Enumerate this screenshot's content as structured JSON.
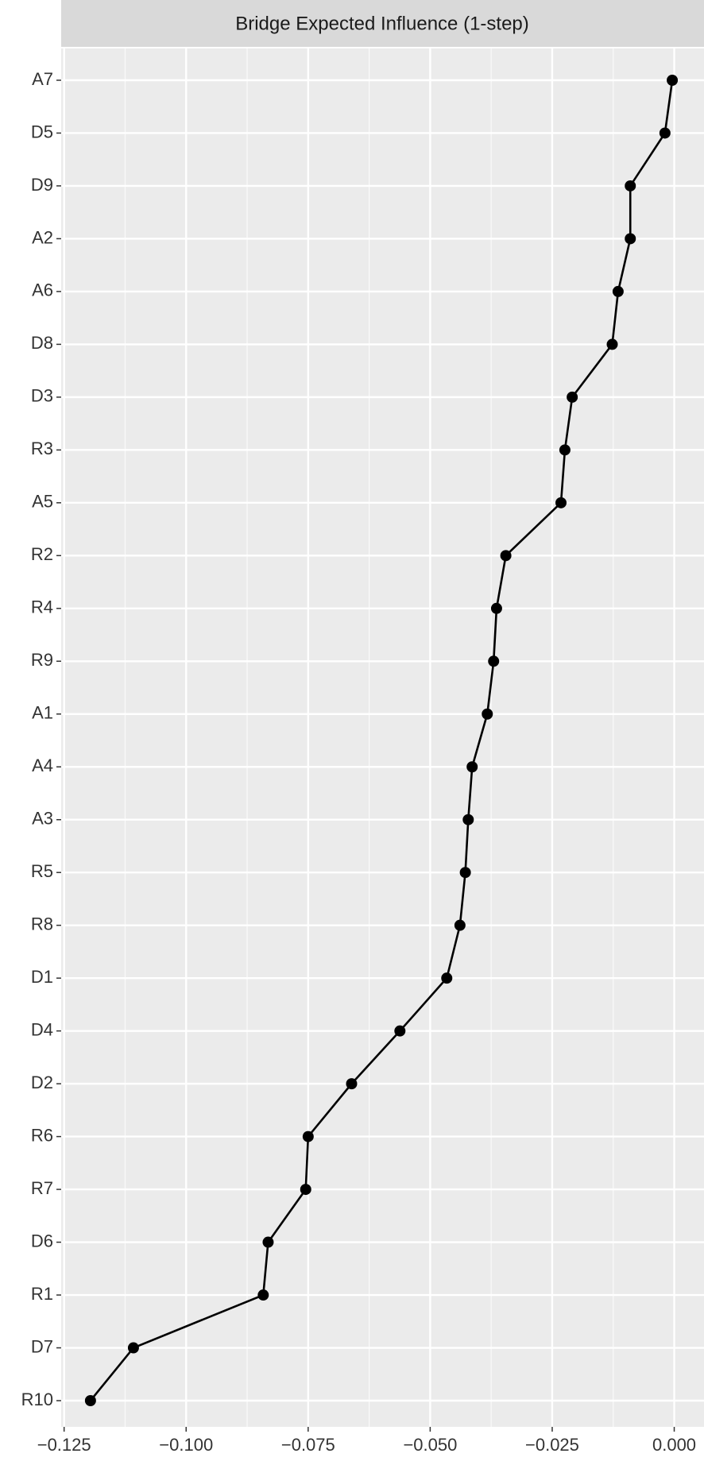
{
  "chart_data": {
    "type": "line",
    "orientation": "horizontal",
    "title": "Bridge Expected Influence (1-step)",
    "categories": [
      "A7",
      "D5",
      "D9",
      "A2",
      "A6",
      "D8",
      "D3",
      "R3",
      "A5",
      "R2",
      "R4",
      "R9",
      "A1",
      "A4",
      "A3",
      "R5",
      "R8",
      "D1",
      "D4",
      "D2",
      "R6",
      "R7",
      "D6",
      "R1",
      "D7",
      "R10"
    ],
    "values": [
      -0.0004,
      -0.0019,
      -0.009,
      -0.009,
      -0.0115,
      -0.0127,
      -0.0209,
      -0.0224,
      -0.0232,
      -0.0345,
      -0.0364,
      -0.037,
      -0.0383,
      -0.0414,
      -0.0422,
      -0.0428,
      -0.0439,
      -0.0466,
      -0.0562,
      -0.0661,
      -0.075,
      -0.0755,
      -0.0832,
      -0.0842,
      -0.1108,
      -0.1196
    ],
    "color": "#000000",
    "xlim": [
      -0.1256,
      0.0061
    ],
    "xticks": [
      {
        "value": -0.125,
        "label": "−0.125"
      },
      {
        "value": -0.1,
        "label": "−0.100"
      },
      {
        "value": -0.075,
        "label": "−0.075"
      },
      {
        "value": -0.05,
        "label": "−0.050"
      },
      {
        "value": -0.025,
        "label": "−0.025"
      },
      {
        "value": 0,
        "label": "0.000"
      }
    ],
    "grid": true
  }
}
